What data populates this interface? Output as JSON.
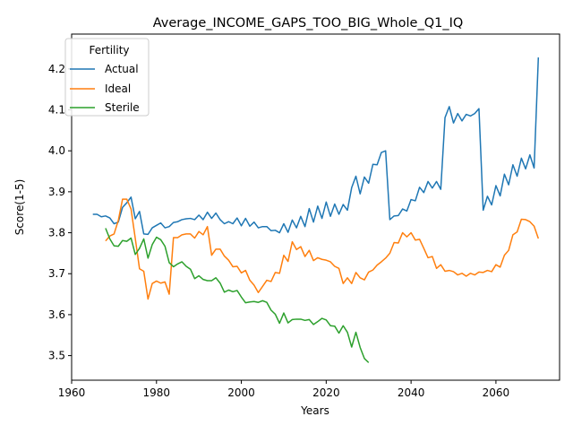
{
  "chart_data": {
    "type": "line",
    "title": "Average_INCOME_GAPS_TOO_BIG_Whole_Q1_IQ",
    "xlabel": "Years",
    "ylabel": "Score(1-5)",
    "xlim": [
      1960,
      2075
    ],
    "ylim": [
      3.44,
      4.285
    ],
    "x_ticks": [
      1960,
      1980,
      2000,
      2020,
      2040,
      2060
    ],
    "y_ticks": [
      3.5,
      3.6,
      3.7,
      3.8,
      3.9,
      4.0,
      4.1,
      4.2
    ],
    "grid": false,
    "legend": {
      "title": "Fertility",
      "placement": "upper-left"
    },
    "series": [
      {
        "name": "Actual",
        "color": "#1f77b4",
        "x": [
          1965,
          1966,
          1967,
          1968,
          1969,
          1970,
          1971,
          1972,
          1973,
          1974,
          1975,
          1976,
          1977,
          1978,
          1979,
          1980,
          1981,
          1982,
          1983,
          1984,
          1985,
          1986,
          1987,
          1988,
          1989,
          1990,
          1991,
          1992,
          1993,
          1994,
          1995,
          1996,
          1997,
          1998,
          1999,
          2000,
          2001,
          2002,
          2003,
          2004,
          2005,
          2006,
          2007,
          2008,
          2009,
          2010,
          2011,
          2012,
          2013,
          2014,
          2015,
          2016,
          2017,
          2018,
          2019,
          2020,
          2021,
          2022,
          2023,
          2024,
          2025,
          2026,
          2027,
          2028,
          2029,
          2030,
          2031,
          2032,
          2033,
          2034,
          2035,
          2036,
          2037,
          2038,
          2039,
          2040,
          2041,
          2042,
          2043,
          2044,
          2045,
          2046,
          2047,
          2048,
          2049,
          2050,
          2051,
          2052,
          2053,
          2054,
          2055,
          2056,
          2057,
          2058,
          2059,
          2060,
          2061,
          2062,
          2063,
          2064,
          2065,
          2066,
          2067,
          2068,
          2069,
          2070
        ],
        "values": [
          3.845,
          3.845,
          3.839,
          3.841,
          3.836,
          3.822,
          3.826,
          3.862,
          3.873,
          3.887,
          3.834,
          3.852,
          3.797,
          3.796,
          3.812,
          3.818,
          3.824,
          3.812,
          3.815,
          3.825,
          3.827,
          3.832,
          3.834,
          3.835,
          3.832,
          3.843,
          3.832,
          3.85,
          3.835,
          3.848,
          3.832,
          3.822,
          3.827,
          3.822,
          3.836,
          3.817,
          3.835,
          3.816,
          3.826,
          3.812,
          3.815,
          3.815,
          3.805,
          3.806,
          3.8,
          3.822,
          3.801,
          3.831,
          3.812,
          3.84,
          3.815,
          3.859,
          3.826,
          3.865,
          3.835,
          3.875,
          3.84,
          3.87,
          3.845,
          3.869,
          3.855,
          3.91,
          3.938,
          3.895,
          3.936,
          3.921,
          3.967,
          3.966,
          3.996,
          4.0,
          3.832,
          3.841,
          3.842,
          3.858,
          3.853,
          3.881,
          3.878,
          3.911,
          3.898,
          3.925,
          3.909,
          3.925,
          3.906,
          4.081,
          4.108,
          4.068,
          4.091,
          4.073,
          4.089,
          4.085,
          4.091,
          4.103,
          3.855,
          3.889,
          3.868,
          3.915,
          3.89,
          3.943,
          3.917,
          3.966,
          3.938,
          3.982,
          3.956,
          3.99,
          3.958,
          4.228
        ]
      },
      {
        "name": "Ideal",
        "color": "#ff7f0e",
        "x": [
          1968,
          1969,
          1970,
          1971,
          1972,
          1973,
          1974,
          1975,
          1976,
          1977,
          1978,
          1979,
          1980,
          1981,
          1982,
          1983,
          1984,
          1985,
          1986,
          1987,
          1988,
          1989,
          1990,
          1991,
          1992,
          1993,
          1994,
          1995,
          1996,
          1997,
          1998,
          1999,
          2000,
          2001,
          2002,
          2003,
          2004,
          2005,
          2006,
          2007,
          2008,
          2009,
          2010,
          2011,
          2012,
          2013,
          2014,
          2015,
          2016,
          2017,
          2018,
          2019,
          2020,
          2021,
          2022,
          2023,
          2024,
          2025,
          2026,
          2027,
          2028,
          2029,
          2030,
          2031,
          2032,
          2033,
          2034,
          2035,
          2036,
          2037,
          2038,
          2039,
          2040,
          2041,
          2042,
          2043,
          2044,
          2045,
          2046,
          2047,
          2048,
          2049,
          2050,
          2051,
          2052,
          2053,
          2054,
          2055,
          2056,
          2057,
          2058,
          2059,
          2060,
          2061,
          2062,
          2063,
          2064,
          2065,
          2066,
          2067,
          2068,
          2069,
          2070
        ],
        "values": [
          3.78,
          3.792,
          3.797,
          3.83,
          3.882,
          3.882,
          3.858,
          3.786,
          3.712,
          3.706,
          3.638,
          3.676,
          3.682,
          3.677,
          3.68,
          3.65,
          3.788,
          3.788,
          3.795,
          3.797,
          3.797,
          3.787,
          3.803,
          3.795,
          3.815,
          3.745,
          3.76,
          3.76,
          3.743,
          3.733,
          3.717,
          3.718,
          3.702,
          3.708,
          3.684,
          3.672,
          3.654,
          3.669,
          3.684,
          3.681,
          3.703,
          3.701,
          3.745,
          3.73,
          3.778,
          3.759,
          3.766,
          3.742,
          3.757,
          3.732,
          3.739,
          3.735,
          3.733,
          3.729,
          3.718,
          3.713,
          3.676,
          3.69,
          3.676,
          3.703,
          3.69,
          3.685,
          3.704,
          3.709,
          3.721,
          3.729,
          3.738,
          3.75,
          3.776,
          3.775,
          3.8,
          3.79,
          3.8,
          3.782,
          3.784,
          3.762,
          3.739,
          3.742,
          3.713,
          3.722,
          3.706,
          3.708,
          3.705,
          3.697,
          3.701,
          3.694,
          3.701,
          3.697,
          3.704,
          3.703,
          3.708,
          3.705,
          3.722,
          3.716,
          3.745,
          3.757,
          3.795,
          3.802,
          3.833,
          3.832,
          3.827,
          3.816,
          3.786
        ]
      },
      {
        "name": "Sterile",
        "color": "#2ca02c",
        "x": [
          1968,
          1969,
          1970,
          1971,
          1972,
          1973,
          1974,
          1975,
          1976,
          1977,
          1978,
          1979,
          1980,
          1981,
          1982,
          1983,
          1984,
          1985,
          1986,
          1987,
          1988,
          1989,
          1990,
          1991,
          1992,
          1993,
          1994,
          1995,
          1996,
          1997,
          1998,
          1999,
          2000,
          2001,
          2002,
          2003,
          2004,
          2005,
          2006,
          2007,
          2008,
          2009,
          2010,
          2011,
          2012,
          2013,
          2014,
          2015,
          2016,
          2017,
          2018,
          2019,
          2020,
          2021,
          2022,
          2023,
          2024,
          2025,
          2026,
          2027,
          2028,
          2029,
          2030
        ],
        "values": [
          3.811,
          3.785,
          3.768,
          3.767,
          3.781,
          3.779,
          3.787,
          3.747,
          3.762,
          3.785,
          3.738,
          3.771,
          3.789,
          3.783,
          3.767,
          3.727,
          3.717,
          3.724,
          3.729,
          3.718,
          3.711,
          3.688,
          3.695,
          3.686,
          3.683,
          3.683,
          3.69,
          3.677,
          3.655,
          3.66,
          3.656,
          3.659,
          3.643,
          3.629,
          3.631,
          3.632,
          3.63,
          3.634,
          3.63,
          3.611,
          3.601,
          3.579,
          3.604,
          3.58,
          3.588,
          3.589,
          3.589,
          3.586,
          3.588,
          3.576,
          3.583,
          3.591,
          3.587,
          3.573,
          3.572,
          3.555,
          3.573,
          3.557,
          3.521,
          3.557,
          3.52,
          3.493,
          3.483
        ]
      }
    ]
  }
}
